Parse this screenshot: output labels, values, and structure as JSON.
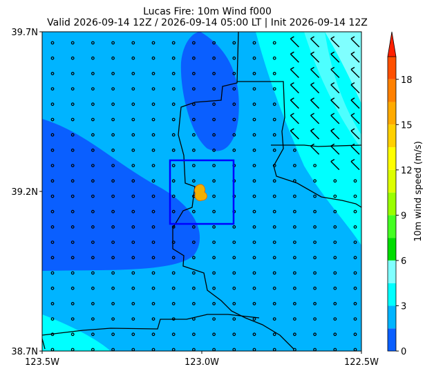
{
  "chart_data": {
    "type": "map",
    "title": "Lucas Fire: 10m Wind f000",
    "subtitle": "Valid 2026-09-14 12Z / 2026-09-14 05:00 LT | Init 2026-09-14 12Z",
    "xlim": [
      -123.5,
      -122.5
    ],
    "xticks": [
      {
        "value": -123.5,
        "label": "123.5W"
      },
      {
        "value": -123.0,
        "label": "123.0W"
      },
      {
        "value": -122.5,
        "label": "122.5W"
      }
    ],
    "ylim": [
      38.7,
      39.7
    ],
    "yticks": [
      {
        "value": 38.7,
        "label": "38.7N"
      },
      {
        "value": 39.2,
        "label": "39.2N"
      },
      {
        "value": 39.7,
        "label": "39.7N"
      }
    ],
    "colorbar": {
      "label": "10m wind speed (m/s)",
      "lim": [
        0,
        19.5
      ],
      "ticks": [
        0,
        3,
        6,
        9,
        12,
        15,
        18
      ],
      "levels": [
        0,
        1.5,
        3,
        4.5,
        6,
        7.5,
        9,
        10.5,
        12,
        13.5,
        15,
        16.5,
        18,
        19.5
      ],
      "colors": [
        "#0a5fff",
        "#00b4ff",
        "#00ffff",
        "#80ffff",
        "#00dd00",
        "#44ff22",
        "#99ff00",
        "#ddff00",
        "#ffff00",
        "#ffd000",
        "#ffaa00",
        "#ff8000",
        "#ff5000"
      ],
      "extend_color": "#ff2000"
    }
  }
}
